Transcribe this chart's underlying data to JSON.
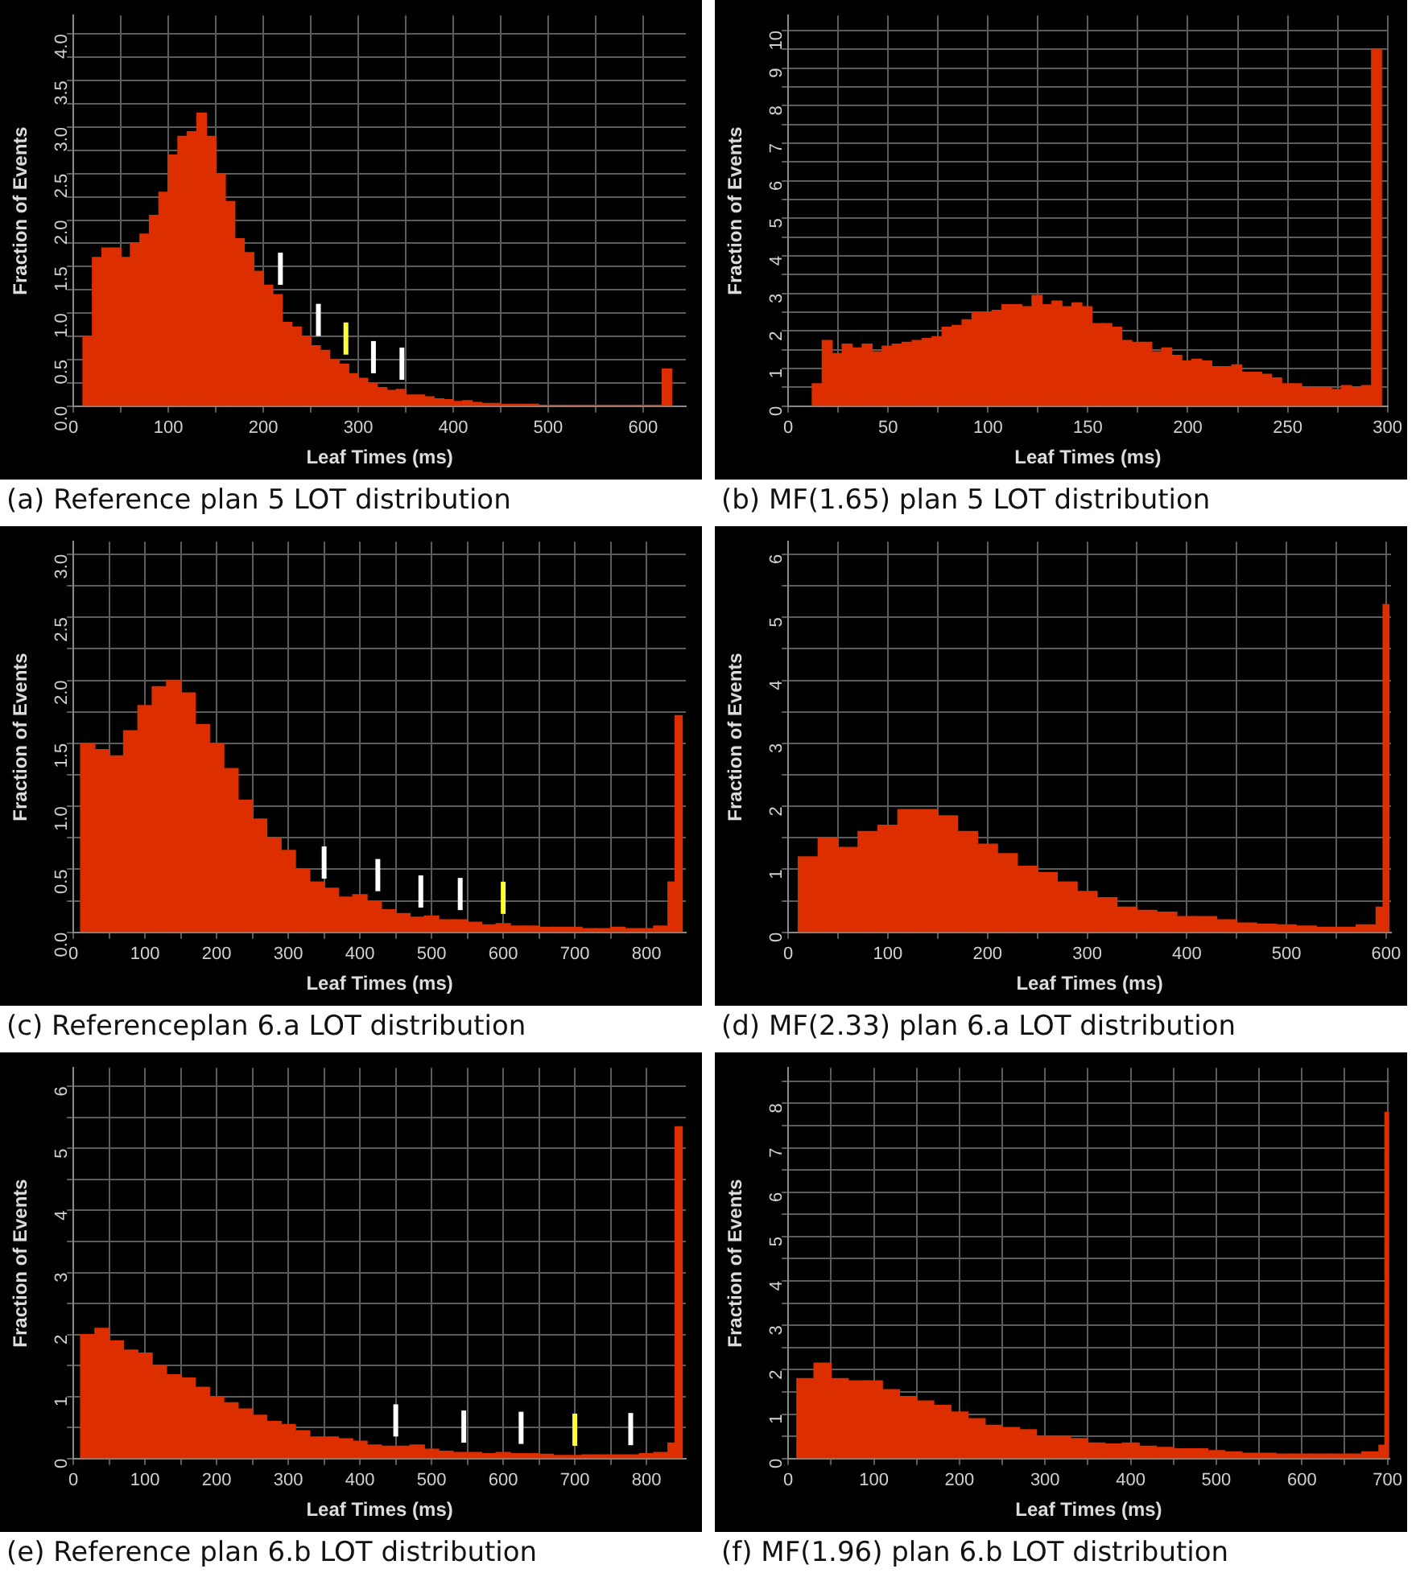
{
  "chart_data": [
    {
      "type": "histogram",
      "title": "(a) Reference plan 5 LOT distribution",
      "xlabel": "Leaf Times (ms)",
      "ylabel": "Fraction of Events",
      "color": "#dd2e00",
      "grid": true,
      "bins": [
        10,
        20,
        30,
        40,
        50,
        60,
        70,
        80,
        90,
        100,
        110,
        120,
        130,
        140,
        150,
        160,
        170,
        180,
        190,
        200,
        210,
        220,
        230,
        240,
        250,
        260,
        270,
        280,
        290,
        300,
        310,
        320,
        330,
        340,
        350,
        360,
        370,
        380,
        390,
        400,
        410,
        420,
        430,
        440,
        450,
        460,
        470,
        480,
        490,
        500,
        510,
        520,
        530,
        540,
        550,
        560,
        570,
        580,
        590,
        600,
        610,
        620,
        630
      ],
      "values": [
        0.75,
        1.6,
        1.7,
        1.7,
        1.6,
        1.75,
        1.85,
        2.05,
        2.3,
        2.7,
        2.9,
        2.95,
        3.15,
        2.9,
        2.5,
        2.2,
        1.8,
        1.65,
        1.45,
        1.3,
        1.2,
        0.9,
        0.85,
        0.75,
        0.65,
        0.6,
        0.5,
        0.45,
        0.35,
        0.3,
        0.25,
        0.2,
        0.17,
        0.18,
        0.12,
        0.12,
        0.1,
        0.08,
        0.07,
        0.05,
        0.06,
        0.04,
        0.03,
        0.03,
        0.02,
        0.02,
        0.02,
        0.02,
        0.01,
        0.01,
        0.01,
        0.01,
        0.01,
        0.01,
        0.01,
        0.01,
        0.01,
        0.01,
        0.01,
        0.01,
        0.01,
        0.4
      ],
      "xlim": [
        0,
        645
      ],
      "ylim": [
        0,
        4.2
      ],
      "xticks": [
        0,
        {
          "value": 50,
          "label": null
        },
        100,
        {
          "value": 150,
          "label": null
        },
        200,
        {
          "value": 250,
          "label": null
        },
        300,
        {
          "value": 350,
          "label": null
        },
        400,
        {
          "value": 450,
          "label": null
        },
        500,
        {
          "value": 550,
          "label": null
        },
        600
      ],
      "yticks": [
        {
          "value": 0,
          "label": "0.0"
        },
        {
          "value": 0.25,
          "label": null
        },
        0.5,
        {
          "value": 0.75,
          "label": null
        },
        {
          "value": 1,
          "label": "1.0"
        },
        {
          "value": 1.25,
          "label": null
        },
        1.5,
        {
          "value": 1.75,
          "label": null
        },
        {
          "value": 2,
          "label": "2.0"
        },
        {
          "value": 2.25,
          "label": null
        },
        2.5,
        {
          "value": 2.75,
          "label": null
        },
        {
          "value": 3,
          "label": "3.0"
        },
        {
          "value": 3.25,
          "label": null
        },
        3.5,
        {
          "value": 3.75,
          "label": null
        },
        {
          "value": 4,
          "label": "4.0"
        }
      ],
      "ref_lines": [
        {
          "axis": "x",
          "value": 218,
          "color": "#ffffff"
        },
        {
          "axis": "x",
          "value": 258,
          "color": "#ffffff"
        },
        {
          "axis": "x",
          "value": 287,
          "color": "#ffff33"
        },
        {
          "axis": "x",
          "value": 316,
          "color": "#ffffff"
        },
        {
          "axis": "x",
          "value": 346,
          "color": "#ffffff"
        }
      ]
    },
    {
      "type": "histogram",
      "title": "(b) MF(1.65) plan 5 LOT distribution",
      "xlabel": "Leaf Times (ms)",
      "ylabel": "Fraction of Events",
      "color": "#dd2e00",
      "grid": true,
      "bins": [
        12,
        17,
        22,
        27,
        32,
        37,
        42,
        47,
        52,
        57,
        62,
        67,
        72,
        77,
        82,
        87,
        92,
        97,
        102,
        107,
        112,
        117,
        122,
        127,
        132,
        137,
        142,
        147,
        152,
        157,
        162,
        167,
        172,
        177,
        182,
        187,
        192,
        197,
        202,
        207,
        212,
        217,
        222,
        227,
        232,
        237,
        242,
        247,
        252,
        257,
        262,
        267,
        272,
        277,
        282,
        287,
        292,
        297
      ],
      "values": [
        0.6,
        1.75,
        1.4,
        1.65,
        1.55,
        1.65,
        1.45,
        1.6,
        1.65,
        1.7,
        1.75,
        1.8,
        1.85,
        2.1,
        2.15,
        2.3,
        2.5,
        2.5,
        2.55,
        2.7,
        2.7,
        2.65,
        2.95,
        2.7,
        2.8,
        2.65,
        2.75,
        2.65,
        2.2,
        2.2,
        2.1,
        1.75,
        1.7,
        1.7,
        1.45,
        1.55,
        1.35,
        1.2,
        1.25,
        1.2,
        1.05,
        1.05,
        1.1,
        0.9,
        0.9,
        0.85,
        0.75,
        0.6,
        0.6,
        0.5,
        0.5,
        0.5,
        0.45,
        0.55,
        0.5,
        0.55,
        9.5
      ],
      "xlim": [
        0,
        300
      ],
      "ylim": [
        0,
        10.4
      ],
      "xticks": [
        0,
        {
          "value": 25,
          "label": null
        },
        50,
        {
          "value": 75,
          "label": null
        },
        100,
        {
          "value": 125,
          "label": null
        },
        150,
        {
          "value": 175,
          "label": null
        },
        200,
        {
          "value": 225,
          "label": null
        },
        250,
        {
          "value": 275,
          "label": null
        },
        300
      ],
      "yticks": [
        0,
        {
          "value": 0.5,
          "label": null
        },
        1,
        {
          "value": 1.5,
          "label": null
        },
        2,
        {
          "value": 2.5,
          "label": null
        },
        3,
        {
          "value": 3.5,
          "label": null
        },
        4,
        {
          "value": 4.5,
          "label": null
        },
        5,
        {
          "value": 5.5,
          "label": null
        },
        6,
        {
          "value": 6.5,
          "label": null
        },
        7,
        {
          "value": 7.5,
          "label": null
        },
        8,
        {
          "value": 8.5,
          "label": null
        },
        9,
        {
          "value": 9.5,
          "label": null
        },
        10
      ]
    },
    {
      "type": "histogram",
      "title": "(c) Referenceplan 6.a LOT distribution",
      "xlabel": "Leaf Times (ms)",
      "ylabel": "Fraction of Events",
      "color": "#dd2e00",
      "grid": true,
      "bins": [
        10,
        30,
        50,
        70,
        90,
        110,
        130,
        150,
        170,
        190,
        210,
        230,
        250,
        270,
        290,
        310,
        330,
        350,
        370,
        390,
        410,
        430,
        450,
        470,
        490,
        510,
        530,
        550,
        570,
        590,
        610,
        630,
        650,
        670,
        690,
        710,
        730,
        750,
        770,
        790,
        810,
        830,
        840,
        850
      ],
      "values": [
        1.5,
        1.45,
        1.4,
        1.6,
        1.8,
        1.95,
        2.0,
        1.9,
        1.65,
        1.5,
        1.3,
        1.05,
        0.9,
        0.75,
        0.65,
        0.5,
        0.4,
        0.35,
        0.28,
        0.3,
        0.25,
        0.18,
        0.15,
        0.12,
        0.13,
        0.1,
        0.1,
        0.08,
        0.06,
        0.07,
        0.05,
        0.05,
        0.04,
        0.04,
        0.04,
        0.03,
        0.03,
        0.04,
        0.03,
        0.03,
        0.05,
        0.4,
        1.72
      ],
      "xlim": [
        0,
        855
      ],
      "ylim": [
        0,
        3.1
      ],
      "xticks": [
        0,
        {
          "value": 50,
          "label": null
        },
        100,
        {
          "value": 150,
          "label": null
        },
        200,
        {
          "value": 250,
          "label": null
        },
        300,
        {
          "value": 350,
          "label": null
        },
        400,
        {
          "value": 450,
          "label": null
        },
        500,
        {
          "value": 550,
          "label": null
        },
        600,
        {
          "value": 650,
          "label": null
        },
        700,
        {
          "value": 750,
          "label": null
        },
        800
      ],
      "yticks": [
        {
          "value": 0,
          "label": "0.0"
        },
        {
          "value": 0.25,
          "label": null
        },
        0.5,
        {
          "value": 0.75,
          "label": null
        },
        {
          "value": 1,
          "label": "1.0"
        },
        {
          "value": 1.25,
          "label": null
        },
        1.5,
        {
          "value": 1.75,
          "label": null
        },
        {
          "value": 2,
          "label": "2.0"
        },
        {
          "value": 2.25,
          "label": null
        },
        2.5,
        {
          "value": 2.75,
          "label": null
        },
        {
          "value": 3,
          "label": "3.0"
        }
      ],
      "ref_lines": [
        {
          "axis": "x",
          "value": 350,
          "color": "#ffffff"
        },
        {
          "axis": "x",
          "value": 425,
          "color": "#ffffff"
        },
        {
          "axis": "x",
          "value": 485,
          "color": "#ffffff"
        },
        {
          "axis": "x",
          "value": 540,
          "color": "#ffffff"
        },
        {
          "axis": "x",
          "value": 600,
          "color": "#ffff33"
        }
      ]
    },
    {
      "type": "histogram",
      "title": "(d) MF(2.33) plan 6.a LOT distribution",
      "xlabel": "Leaf Times (ms)",
      "ylabel": "Fraction of Events",
      "color": "#dd2e00",
      "grid": true,
      "bins": [
        10,
        30,
        50,
        70,
        90,
        110,
        130,
        150,
        170,
        190,
        210,
        230,
        250,
        270,
        290,
        310,
        330,
        350,
        370,
        390,
        410,
        430,
        450,
        470,
        490,
        510,
        530,
        550,
        570,
        590,
        597,
        603
      ],
      "values": [
        1.2,
        1.5,
        1.35,
        1.6,
        1.7,
        1.95,
        1.95,
        1.85,
        1.6,
        1.4,
        1.25,
        1.05,
        0.95,
        0.8,
        0.65,
        0.55,
        0.4,
        0.35,
        0.32,
        0.25,
        0.25,
        0.2,
        0.15,
        0.13,
        0.12,
        0.1,
        0.08,
        0.08,
        0.12,
        0.4,
        5.2
      ],
      "xlim": [
        0,
        605
      ],
      "ylim": [
        0,
        6.2
      ],
      "xticks": [
        0,
        {
          "value": 50,
          "label": null
        },
        100,
        {
          "value": 150,
          "label": null
        },
        200,
        {
          "value": 250,
          "label": null
        },
        300,
        {
          "value": 350,
          "label": null
        },
        400,
        {
          "value": 450,
          "label": null
        },
        500,
        {
          "value": 550,
          "label": null
        },
        600
      ],
      "yticks": [
        0,
        {
          "value": 0.5,
          "label": null
        },
        1,
        {
          "value": 1.5,
          "label": null
        },
        2,
        {
          "value": 2.5,
          "label": null
        },
        3,
        {
          "value": 3.5,
          "label": null
        },
        4,
        {
          "value": 4.5,
          "label": null
        },
        5,
        {
          "value": 5.5,
          "label": null
        },
        6
      ]
    },
    {
      "type": "histogram",
      "title": "(e) Reference plan 6.b LOT distribution",
      "xlabel": "Leaf Times (ms)",
      "ylabel": "Fraction of Events",
      "color": "#dd2e00",
      "grid": true,
      "bins": [
        10,
        30,
        50,
        70,
        90,
        110,
        130,
        150,
        170,
        190,
        210,
        230,
        250,
        270,
        290,
        310,
        330,
        350,
        370,
        390,
        410,
        430,
        450,
        470,
        490,
        510,
        530,
        550,
        570,
        590,
        610,
        630,
        650,
        670,
        690,
        710,
        730,
        750,
        770,
        790,
        810,
        830,
        840,
        850
      ],
      "values": [
        2.0,
        2.1,
        1.9,
        1.75,
        1.7,
        1.5,
        1.35,
        1.3,
        1.15,
        1.0,
        0.9,
        0.8,
        0.7,
        0.6,
        0.55,
        0.45,
        0.35,
        0.35,
        0.32,
        0.28,
        0.22,
        0.2,
        0.2,
        0.22,
        0.15,
        0.12,
        0.1,
        0.1,
        0.08,
        0.1,
        0.08,
        0.08,
        0.07,
        0.05,
        0.05,
        0.06,
        0.06,
        0.06,
        0.06,
        0.08,
        0.1,
        0.25,
        5.35
      ],
      "xlim": [
        0,
        855
      ],
      "ylim": [
        0,
        6.3
      ],
      "xticks": [
        0,
        {
          "value": 50,
          "label": null
        },
        100,
        {
          "value": 150,
          "label": null
        },
        200,
        {
          "value": 250,
          "label": null
        },
        300,
        {
          "value": 350,
          "label": null
        },
        400,
        {
          "value": 450,
          "label": null
        },
        500,
        {
          "value": 550,
          "label": null
        },
        600,
        {
          "value": 650,
          "label": null
        },
        700,
        {
          "value": 750,
          "label": null
        },
        800
      ],
      "yticks": [
        0,
        {
          "value": 0.5,
          "label": null
        },
        1,
        {
          "value": 1.5,
          "label": null
        },
        2,
        {
          "value": 2.5,
          "label": null
        },
        3,
        {
          "value": 3.5,
          "label": null
        },
        4,
        {
          "value": 4.5,
          "label": null
        },
        5,
        {
          "value": 5.5,
          "label": null
        },
        6
      ],
      "ref_lines": [
        {
          "axis": "x",
          "value": 450,
          "color": "#ffffff"
        },
        {
          "axis": "x",
          "value": 545,
          "color": "#ffffff"
        },
        {
          "axis": "x",
          "value": 625,
          "color": "#ffffff"
        },
        {
          "axis": "x",
          "value": 700,
          "color": "#ffff33"
        },
        {
          "axis": "x",
          "value": 778,
          "color": "#ffffff"
        }
      ]
    },
    {
      "type": "histogram",
      "title": "(f) MF(1.96) plan 6.b LOT distribution",
      "xlabel": "Leaf Times (ms)",
      "ylabel": "Fraction of Events",
      "color": "#dd2e00",
      "grid": true,
      "bins": [
        10,
        30,
        50,
        70,
        90,
        110,
        130,
        150,
        170,
        190,
        210,
        230,
        250,
        270,
        290,
        310,
        330,
        350,
        370,
        390,
        410,
        430,
        450,
        470,
        490,
        510,
        530,
        550,
        570,
        590,
        610,
        630,
        650,
        670,
        690,
        697,
        702
      ],
      "values": [
        1.8,
        2.15,
        1.8,
        1.75,
        1.75,
        1.55,
        1.4,
        1.3,
        1.2,
        1.05,
        0.9,
        0.75,
        0.7,
        0.65,
        0.5,
        0.5,
        0.45,
        0.35,
        0.33,
        0.35,
        0.28,
        0.25,
        0.22,
        0.22,
        0.18,
        0.15,
        0.12,
        0.12,
        0.1,
        0.1,
        0.1,
        0.1,
        0.1,
        0.15,
        0.3,
        7.8
      ],
      "xlim": [
        0,
        702
      ],
      "ylim": [
        0,
        8.8
      ],
      "xticks": [
        0,
        {
          "value": 50,
          "label": null
        },
        100,
        {
          "value": 150,
          "label": null
        },
        200,
        {
          "value": 250,
          "label": null
        },
        300,
        {
          "value": 350,
          "label": null
        },
        400,
        {
          "value": 450,
          "label": null
        },
        500,
        {
          "value": 550,
          "label": null
        },
        600,
        {
          "value": 650,
          "label": null
        },
        700
      ],
      "yticks": [
        0,
        {
          "value": 0.5,
          "label": null
        },
        1,
        {
          "value": 1.5,
          "label": null
        },
        2,
        {
          "value": 2.5,
          "label": null
        },
        3,
        {
          "value": 3.5,
          "label": null
        },
        4,
        {
          "value": 4.5,
          "label": null
        },
        5,
        {
          "value": 5.5,
          "label": null
        },
        6,
        {
          "value": 6.5,
          "label": null
        },
        7,
        {
          "value": 7.5,
          "label": null
        },
        8,
        {
          "value": 8.5,
          "label": null
        }
      ]
    }
  ]
}
